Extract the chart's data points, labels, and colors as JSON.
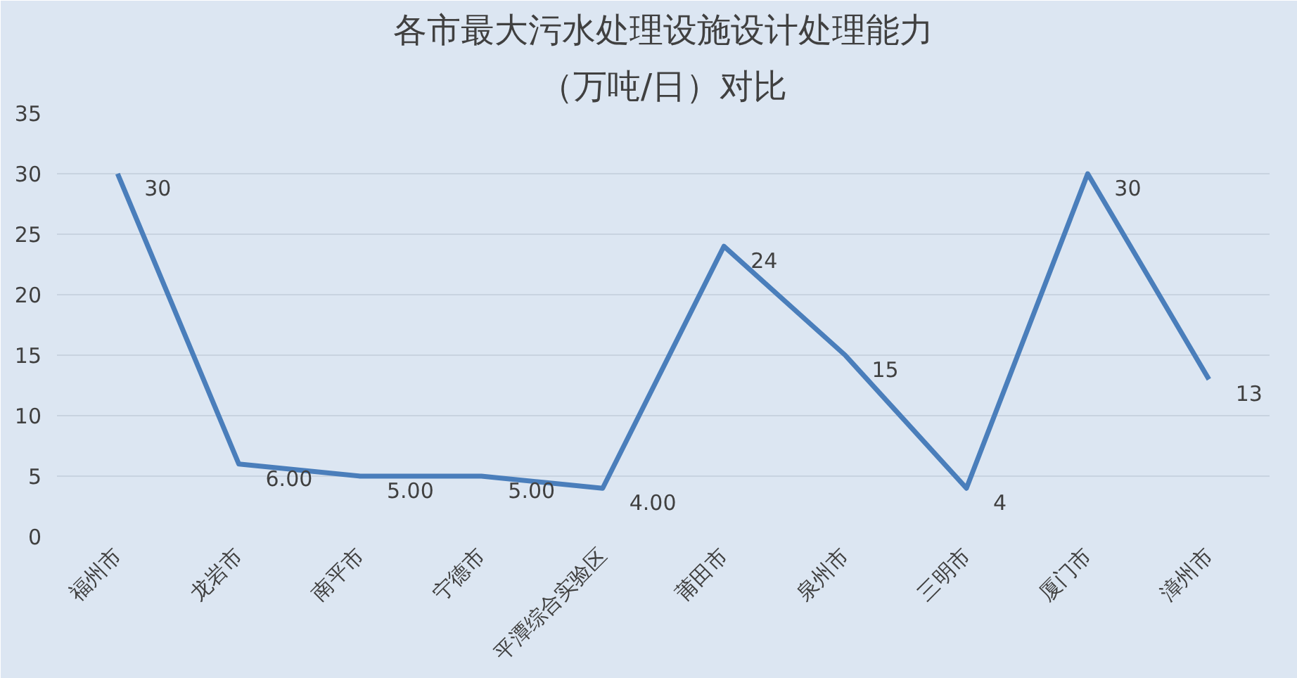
{
  "chart_data": {
    "type": "line",
    "title": "各市最大污水处理设施设计处理能力",
    "subtitle": "（万吨/日）对比",
    "categories": [
      "福州市",
      "龙岩市",
      "南平市",
      "宁德市",
      "平潭综合实验区",
      "莆田市",
      "泉州市",
      "三明市",
      "厦门市",
      "漳州市"
    ],
    "series": [
      {
        "color": "#4a7ebb",
        "values": [
          30,
          6,
          5,
          5,
          4,
          24,
          15,
          4,
          30,
          13
        ],
        "value_labels": [
          "30",
          "6.00",
          "5.00",
          "5.00",
          "4.00",
          "24",
          "15",
          "4",
          "30",
          "13"
        ]
      }
    ],
    "ylim": [
      0,
      35
    ],
    "yticks": [
      0,
      5,
      10,
      15,
      20,
      25,
      30,
      35
    ],
    "grid": "y",
    "marker": "none",
    "line_style": "solid"
  }
}
